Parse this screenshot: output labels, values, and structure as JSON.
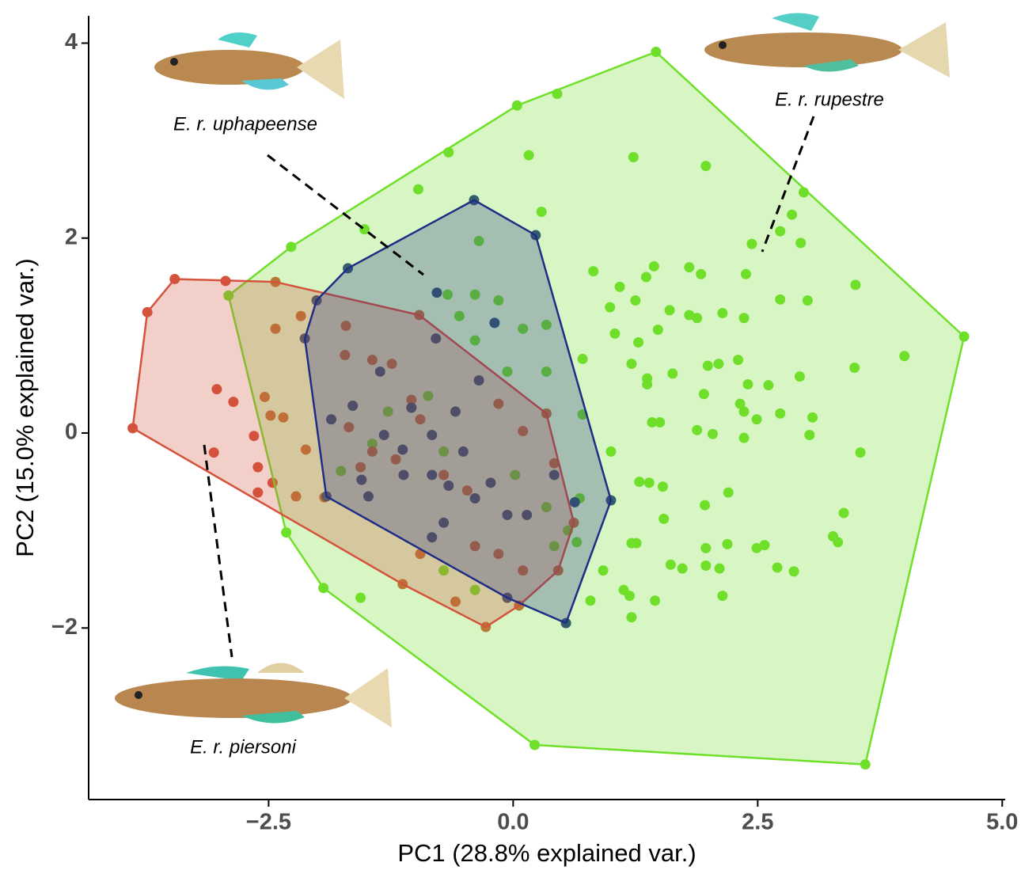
{
  "chart_data": {
    "type": "scatter",
    "xlabel": "PC1 (28.8% explained var.)",
    "ylabel": "PC2 (15.0% explained var.)",
    "xlim": [
      -4.34,
      5.03
    ],
    "ylim": [
      -3.76,
      4.28
    ],
    "xticks": [
      {
        "value": -2.5,
        "label": "−2.5"
      },
      {
        "value": 0,
        "label": "0.0"
      },
      2.5,
      {
        "value": 5,
        "label": "5.0"
      }
    ],
    "yticks": [
      {
        "value": -2,
        "label": "−2"
      },
      0,
      2,
      4
    ],
    "grid": false,
    "hulls": true,
    "series": [
      {
        "name": "E. r. rupestre",
        "color": "#6fe02a",
        "x": [
          1.46,
          4.61,
          3.6,
          0.22,
          -1.94,
          -2.32,
          -2.91,
          -2.27,
          0.04,
          0.45,
          -0.66,
          0.16,
          1.23,
          1.97,
          -0.97,
          0.29,
          -1.52,
          2.97,
          2.85,
          2.73,
          2.94,
          2.44,
          0.82,
          1.44,
          1.8,
          1.92,
          3.5,
          2.38,
          1.09,
          1.36,
          1.25,
          0.99,
          1.6,
          1.8,
          1.88,
          2.14,
          2.36,
          2.73,
          3.01,
          4.0,
          1.28,
          1.04,
          1.48,
          0.71,
          1.21,
          1.99,
          2.1,
          2.3,
          3.49,
          1.37,
          1.63,
          1.95,
          2.4,
          2.93,
          2.61,
          1.37,
          2.32,
          2.36,
          2.49,
          2.73,
          3.06,
          1.42,
          1.5,
          0.71,
          1.88,
          2.04,
          2.36,
          3.03,
          3.55,
          1.0,
          1.29,
          1.39,
          1.53,
          1.96,
          2.2,
          3.38,
          1.54,
          3.27,
          3.32,
          0.68,
          0.56,
          0.65,
          1.21,
          1.26,
          1.97,
          2.19,
          2.49,
          2.57,
          1.61,
          1.73,
          1.97,
          2.11,
          2.7,
          2.87,
          0.92,
          1.13,
          1.19,
          1.45,
          1.21,
          0.79,
          2.14,
          -1.56,
          -0.71,
          -0.39,
          -0.87,
          -0.39,
          -0.55,
          -0.39,
          -0.67,
          -1.44,
          -1.76,
          0.02,
          0.34,
          0.42,
          -0.06,
          0.34,
          0.34,
          0.1,
          -0.15,
          -0.35,
          -0.71,
          -1.28
        ],
        "y": [
          3.91,
          0.99,
          -3.4,
          -3.2,
          -1.59,
          -1.02,
          1.41,
          1.91,
          3.36,
          3.48,
          2.88,
          2.85,
          2.83,
          2.74,
          2.5,
          2.27,
          2.09,
          2.47,
          2.24,
          2.07,
          1.95,
          1.94,
          1.66,
          1.71,
          1.7,
          1.63,
          1.52,
          1.63,
          1.5,
          1.6,
          1.36,
          1.29,
          1.26,
          1.21,
          1.18,
          1.23,
          1.18,
          1.37,
          1.36,
          0.79,
          0.93,
          1.02,
          1.06,
          0.76,
          0.71,
          0.69,
          0.71,
          0.75,
          0.67,
          0.56,
          0.61,
          0.4,
          0.5,
          0.58,
          0.49,
          0.5,
          0.3,
          0.22,
          0.14,
          0.2,
          0.16,
          0.11,
          0.11,
          0.19,
          0.03,
          -0.01,
          -0.05,
          -0.02,
          -0.2,
          -0.19,
          -0.5,
          -0.51,
          -0.55,
          -0.74,
          -0.61,
          -0.82,
          -0.88,
          -1.06,
          -1.12,
          -0.67,
          -1.0,
          -1.12,
          -1.13,
          -1.13,
          -1.18,
          -1.14,
          -1.18,
          -1.15,
          -1.35,
          -1.39,
          -1.36,
          -1.39,
          -1.38,
          -1.42,
          -1.41,
          -1.61,
          -1.67,
          -1.72,
          -1.89,
          -1.72,
          -1.67,
          -1.69,
          -1.41,
          -1.61,
          0.38,
          0.95,
          1.2,
          1.42,
          1.42,
          -0.11,
          -0.39,
          -0.43,
          -0.76,
          -1.16,
          0.63,
          0.63,
          1.11,
          1.07,
          1.36,
          1.97,
          -0.19,
          0.22
        ]
      },
      {
        "name": "E. r. piersoni",
        "color": "#d4533c",
        "x": [
          -3.89,
          -3.74,
          -3.46,
          -2.94,
          -2.43,
          -0.96,
          0.34,
          0.62,
          0.46,
          0.06,
          -0.28,
          -1.13,
          -2.61,
          -3.03,
          -2.86,
          -3.06,
          -2.61,
          -2.65,
          -2.54,
          -2.48,
          -2.43,
          -2.35,
          -2.12,
          -2.22,
          -1.93,
          -1.71,
          -1.72,
          -1.44,
          -1.24,
          -1.04,
          -0.95,
          -1.44,
          -1.2,
          -0.71,
          -0.47,
          -0.39,
          -0.15,
          0.1,
          -0.59,
          -0.95,
          -1.68,
          -1.56,
          -0.15,
          0.1,
          0.42,
          -2.17,
          -2.46
        ],
        "y": [
          0.05,
          1.24,
          1.58,
          1.56,
          1.55,
          1.21,
          0.2,
          -0.92,
          -1.41,
          -1.77,
          -1.99,
          -1.55,
          -0.61,
          0.45,
          0.32,
          -0.2,
          -0.35,
          -0.03,
          0.37,
          0.18,
          1.07,
          0.16,
          -0.17,
          -0.65,
          -0.66,
          1.1,
          0.8,
          0.75,
          0.71,
          0.34,
          0.14,
          -0.19,
          -0.27,
          -0.43,
          -0.59,
          -1.16,
          -1.24,
          -1.41,
          -1.73,
          -1.24,
          0.06,
          -0.35,
          0.3,
          0.02,
          -0.31,
          1.2,
          -0.51
        ]
      },
      {
        "name": "E. r. uphapeense",
        "color": "#1f2d86",
        "x": [
          -0.4,
          0.23,
          1.0,
          0.54,
          -0.06,
          -1.91,
          -2.13,
          -2.01,
          -1.69,
          -0.78,
          -0.19,
          -0.79,
          -1.36,
          -1.86,
          -1.64,
          -1.04,
          -0.83,
          -1.32,
          -1.13,
          -1.55,
          -1.48,
          -1.12,
          -0.83,
          -0.66,
          -0.39,
          -0.23,
          -0.06,
          -0.71,
          -0.83,
          0.14,
          0.42,
          0.63,
          -0.59,
          -0.35,
          -0.51
        ],
        "y": [
          2.39,
          2.03,
          -0.69,
          -1.95,
          -1.69,
          -0.65,
          0.97,
          1.36,
          1.69,
          1.44,
          1.13,
          0.97,
          0.63,
          0.14,
          0.28,
          0.26,
          -0.02,
          -0.02,
          -0.17,
          -0.48,
          -0.65,
          -0.43,
          -0.43,
          -0.54,
          -0.67,
          -0.51,
          -0.84,
          -0.92,
          -1.07,
          -0.84,
          -0.43,
          -0.71,
          0.22,
          0.54,
          -0.19
        ]
      }
    ]
  }
}
